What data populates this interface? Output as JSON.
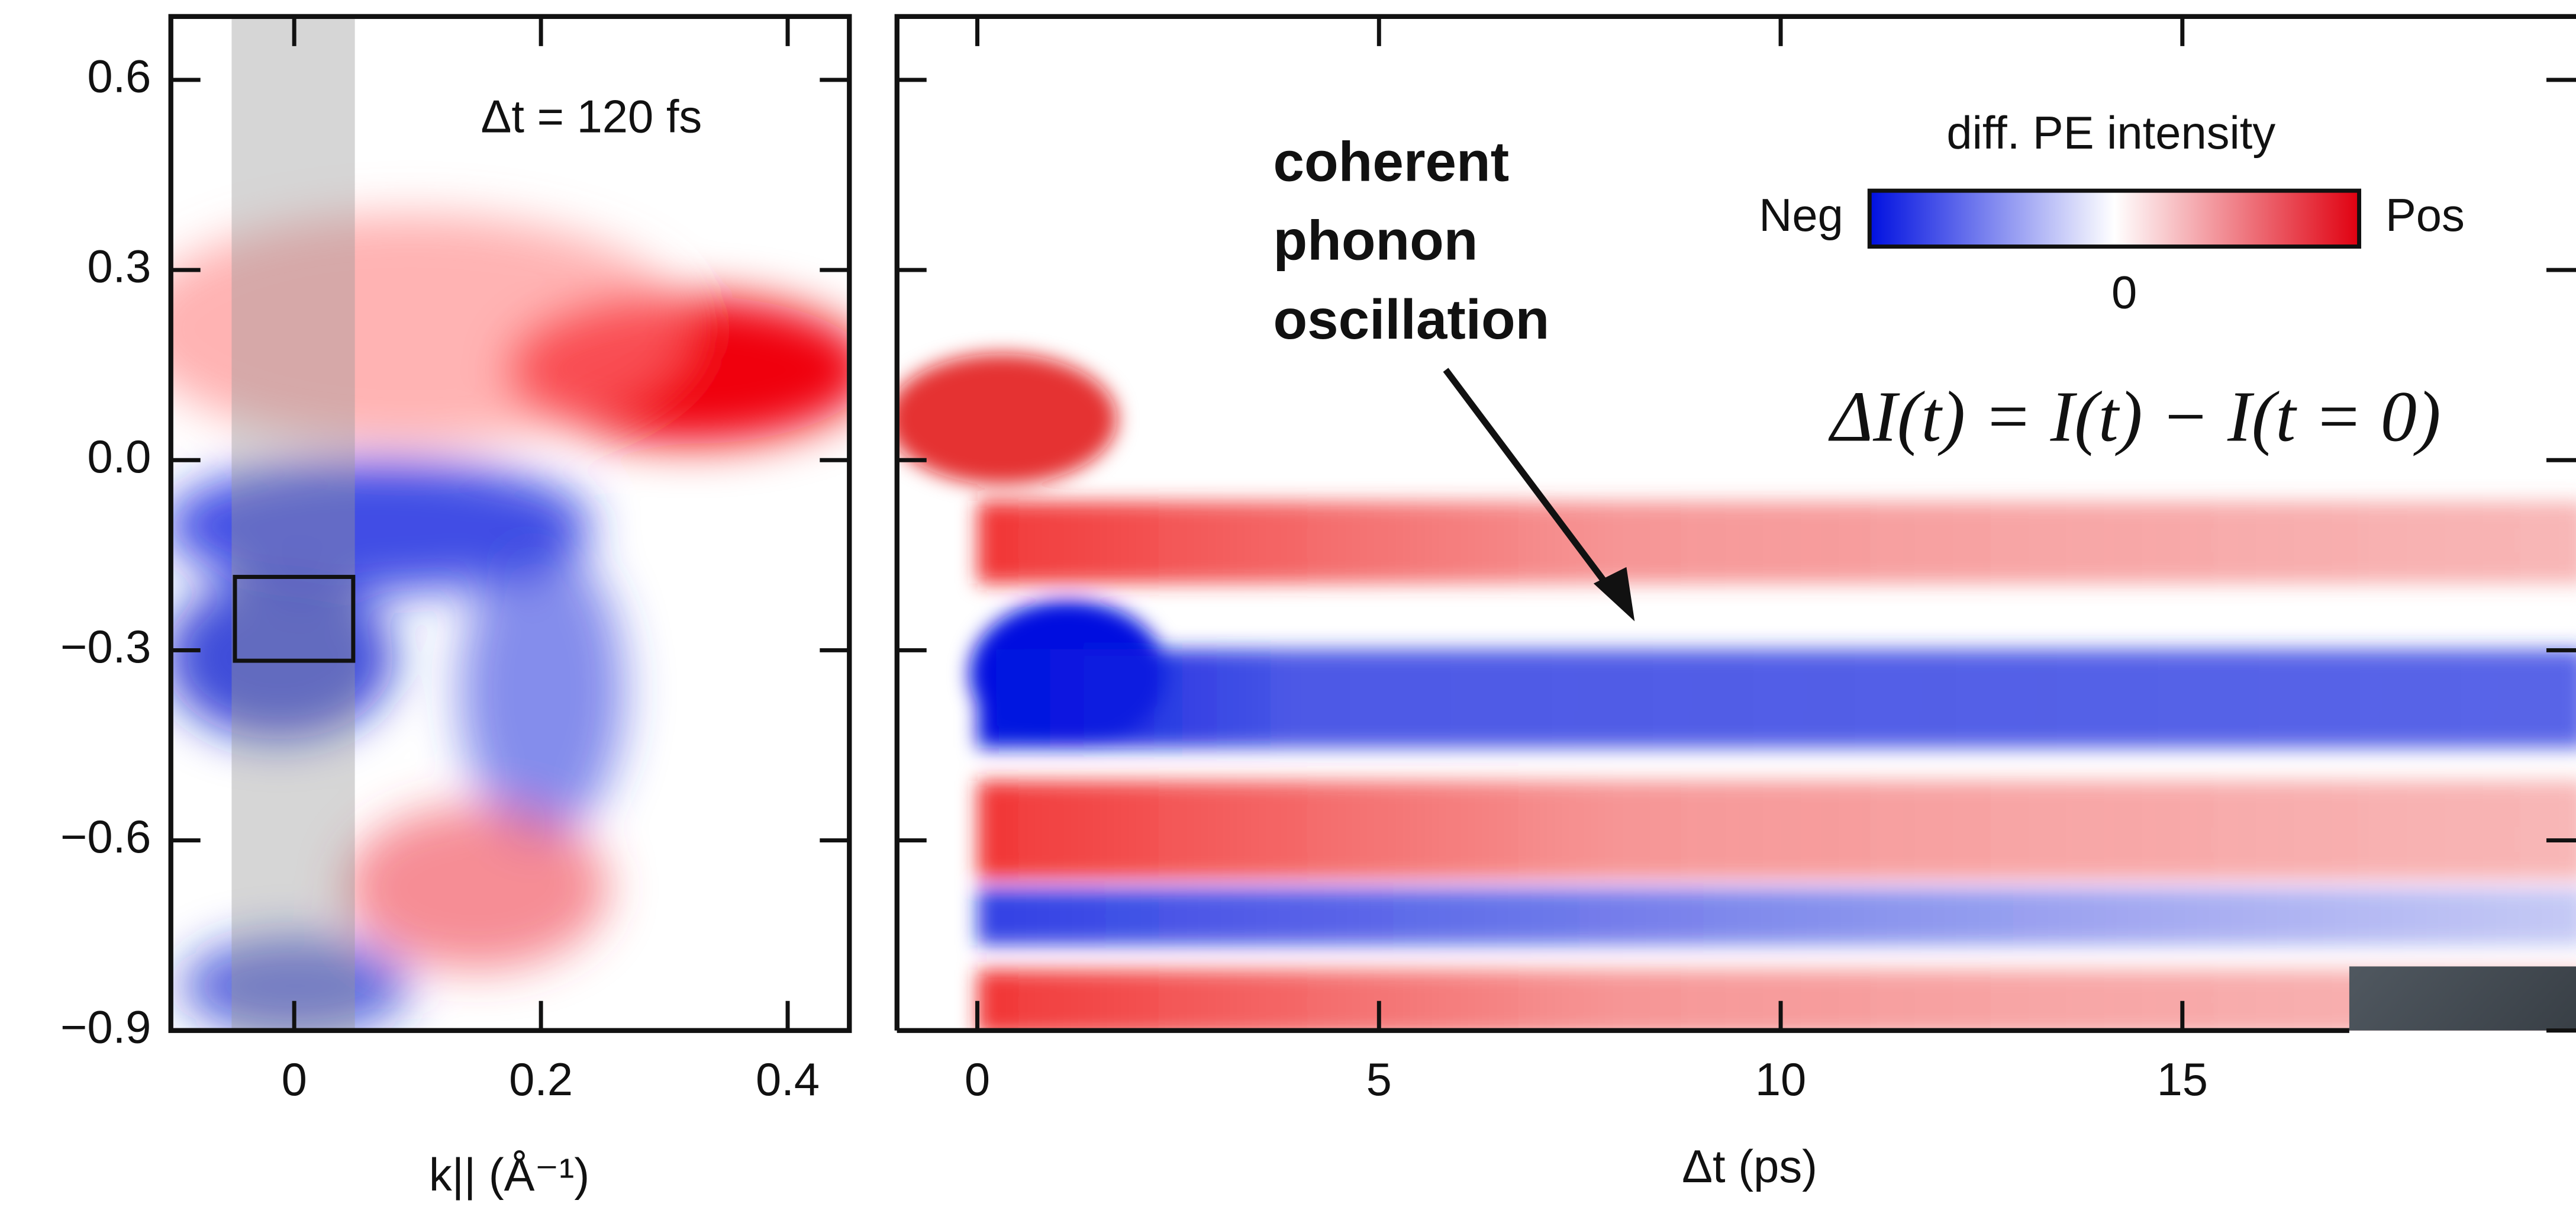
{
  "chart_data": [
    {
      "type": "heatmap",
      "xlabel": "k|| (Å⁻¹)",
      "annotation": "Δt = 120 fs",
      "xlim": [
        -0.1,
        0.45
      ],
      "ylim": [
        -0.9,
        0.7
      ],
      "xticks": [
        0,
        0.2,
        0.4
      ],
      "yticks": [
        0.6,
        0.3,
        {
          "value": 0,
          "label": "0.0"
        },
        {
          "value": -0.3,
          "label": "−0.3"
        },
        {
          "value": -0.6,
          "label": "−0.6"
        },
        {
          "value": -0.9,
          "label": "−0.9"
        }
      ]
    },
    {
      "type": "heatmap",
      "xlabel": "Δt (ps)",
      "annotation": "coherent phonon oscillation",
      "formula": "ΔI(t) = I(t) − I(t = 0)",
      "colorbar": {
        "label": "diff. PE intensity",
        "min_label": "Neg",
        "max_label": "Pos",
        "center_label": "0"
      },
      "xlim": [
        -1,
        19.9
      ],
      "ylim": [
        -0.9,
        0.7
      ],
      "xticks": [
        0,
        5,
        10,
        15
      ]
    }
  ]
}
